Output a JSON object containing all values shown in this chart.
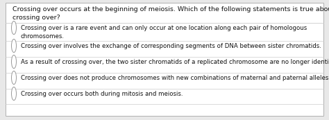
{
  "background_color": "#e8e8e8",
  "border_color": "#b0b0b0",
  "inner_bg": "#ffffff",
  "question": "Crossing over occurs at the beginning of meiosis. Which of the following statements is true about\ncrossing over?",
  "question_fontsize": 6.8,
  "question_color": "#111111",
  "options": [
    "Crossing over is a rare event and can only occur at one location along each pair of homologous\nchromosomes.",
    "Crossing over involves the exchange of corresponding segments of DNA between sister chromatids.",
    "As a result of crossing over, the two sister chromatids of a replicated chromosome are no longer identical.",
    "Crossing over does not produce chromosomes with new combinations of maternal and paternal alleles.",
    "Crossing over occurs both during mitosis and meiosis."
  ],
  "option_fontsize": 6.2,
  "option_color": "#111111",
  "radio_color": "#999999",
  "divider_color": "#cccccc"
}
